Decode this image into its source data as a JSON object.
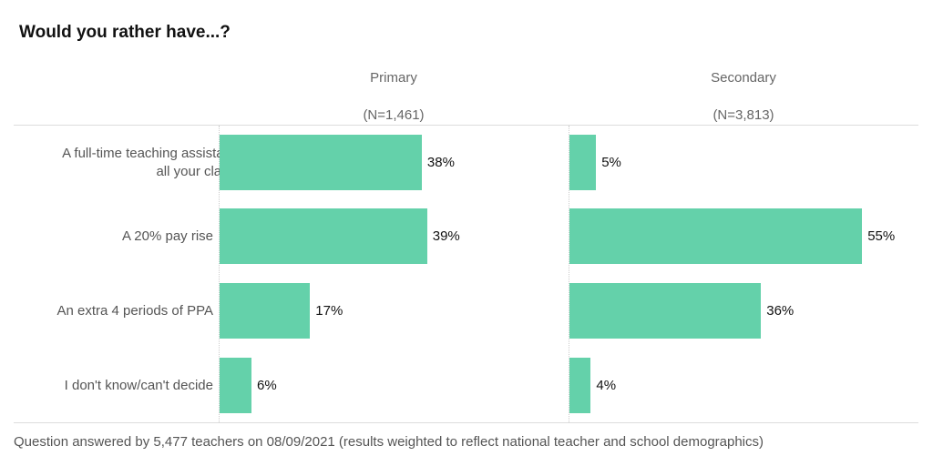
{
  "chart_data": {
    "type": "bar",
    "orientation": "horizontal",
    "title": "Would you rather have...?",
    "categories": [
      "A full-time teaching assistant in all your classes",
      "A 20% pay rise",
      "An extra 4 periods of PPA",
      "I don't know/can't decide"
    ],
    "panels": [
      {
        "name": "Primary",
        "n_label": "(N=1,461)",
        "values": [
          38,
          39,
          17,
          6
        ],
        "labels": [
          "38%",
          "39%",
          "17%",
          "6%"
        ]
      },
      {
        "name": "Secondary",
        "n_label": "(N=3,813)",
        "values": [
          5,
          55,
          36,
          4
        ],
        "labels": [
          "5%",
          "55%",
          "36%",
          "4%"
        ]
      }
    ],
    "xlim": [
      0,
      100
    ],
    "bar_color": "#64d1aa",
    "footer": "Question answered by 5,477 teachers on 08/09/2021 (results weighted to reflect national teacher and school demographics)"
  }
}
